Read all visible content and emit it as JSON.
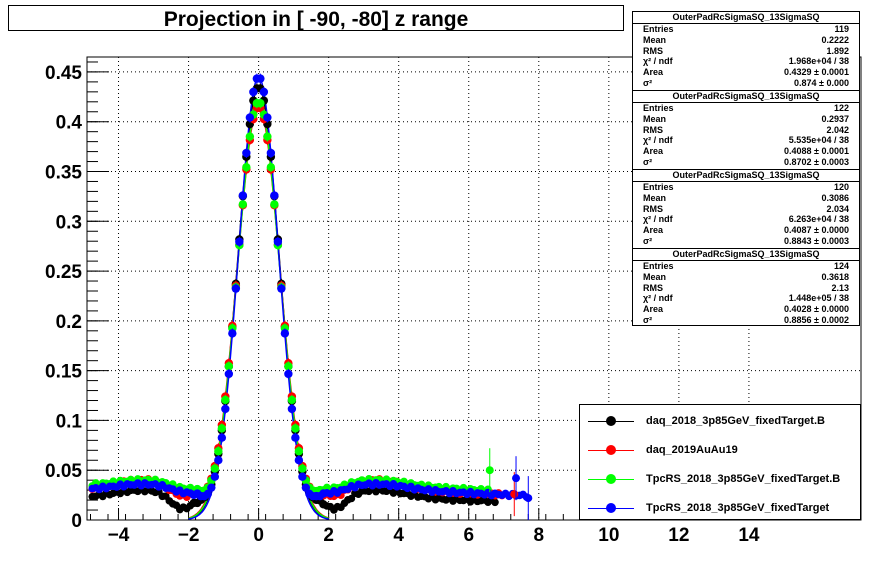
{
  "title": "Projection in [ -90, -80] z range",
  "chart_data": {
    "type": "scatter",
    "title": "Projection in [ -90, -80] z range",
    "xlabel": "",
    "ylabel": "",
    "xlim": [
      -4.9,
      17.2
    ],
    "ylim": [
      0,
      0.465
    ],
    "grid": true,
    "x_ticks": [
      -4,
      -2,
      0,
      2,
      4,
      6,
      8,
      10,
      12,
      14
    ],
    "y_ticks": [
      0,
      0.05,
      0.1,
      0.15,
      0.2,
      0.25,
      0.3,
      0.35,
      0.4,
      0.45
    ],
    "x_tick_labels": [
      "−4",
      "−2",
      "0",
      "2",
      "4",
      "6",
      "8",
      "10",
      "12",
      "14"
    ],
    "y_tick_labels": [
      "0",
      "0.05",
      "0.1",
      "0.15",
      "0.2",
      "0.25",
      "0.3",
      "0.35",
      "0.4",
      "0.45"
    ],
    "legend_position": "bottom-right",
    "series": [
      {
        "name": "daq_2018_3p85GeV_fixedTarget.B",
        "color": "#000000",
        "peak": 0.435,
        "sigma": 0.59,
        "baseline": 0.022,
        "side_bump": 0.008,
        "dip": 0.014,
        "xmax": 6.8
      },
      {
        "name": "daq_2019AuAu19",
        "color": "#ff0000",
        "peak": 0.415,
        "sigma": 0.61,
        "baseline": 0.03,
        "side_bump": 0.01,
        "dip": 0.01,
        "xmax": 7.0
      },
      {
        "name": "TpcRS_2018_3p85GeV_fixedTarget.B",
        "color": "#00ff00",
        "peak": 0.42,
        "sigma": 0.6,
        "baseline": 0.034,
        "side_bump": 0.006,
        "dip": 0.004,
        "xmax": 6.6
      },
      {
        "name": "TpcRS_2018_3p85GeV_fixedTarget",
        "color": "#0000ff",
        "peak": 0.445,
        "sigma": 0.57,
        "baseline": 0.03,
        "side_bump": 0.006,
        "dip": 0.004,
        "xmax": 7.7
      }
    ],
    "outliers": [
      {
        "series": "TpcRS_2018_3p85GeV_fixedTarget.B",
        "x": 6.6,
        "y": 0.05
      },
      {
        "series": "daq_2019AuAu19",
        "x": 7.3,
        "y": 0.026
      },
      {
        "series": "TpcRS_2018_3p85GeV_fixedTarget",
        "x": 7.35,
        "y": 0.042
      },
      {
        "series": "TpcRS_2018_3p85GeV_fixedTarget",
        "x": 7.7,
        "y": 0.022
      }
    ]
  },
  "stats_boxes": [
    {
      "name": "OuterPadRcSigmaSQ_13SigmaSQ",
      "entries": "119",
      "mean": "0.2222",
      "rms": "1.892",
      "chi2": "1.968e+04 / 38",
      "area": "0.4329 ± 0.0001",
      "sigma2": "0.874 ± 0.000"
    },
    {
      "name": "OuterPadRcSigmaSQ_13SigmaSQ",
      "entries": "122",
      "mean": "0.2937",
      "rms": "2.042",
      "chi2": "5.535e+04 / 38",
      "area": "0.4088 ± 0.0001",
      "sigma2": "0.8702 ± 0.0003"
    },
    {
      "name": "OuterPadRcSigmaSQ_13SigmaSQ",
      "entries": "120",
      "mean": "0.3086",
      "rms": "2.034",
      "chi2": "6.263e+04 / 38",
      "area": "0.4087 ± 0.0000",
      "sigma2": "0.8843 ± 0.0003"
    },
    {
      "name": "OuterPadRcSigmaSQ_13SigmaSQ",
      "entries": "124",
      "mean": "0.3618",
      "rms": "2.13",
      "chi2": "1.448e+05 / 38",
      "area": "0.4028 ± 0.0000",
      "sigma2": "0.8856 ± 0.0002"
    }
  ],
  "stats_labels": {
    "entries": "Entries",
    "mean": "Mean",
    "rms": "RMS",
    "chi2": "χ² / ndf",
    "area": "Area",
    "sigma2": "σ²"
  }
}
